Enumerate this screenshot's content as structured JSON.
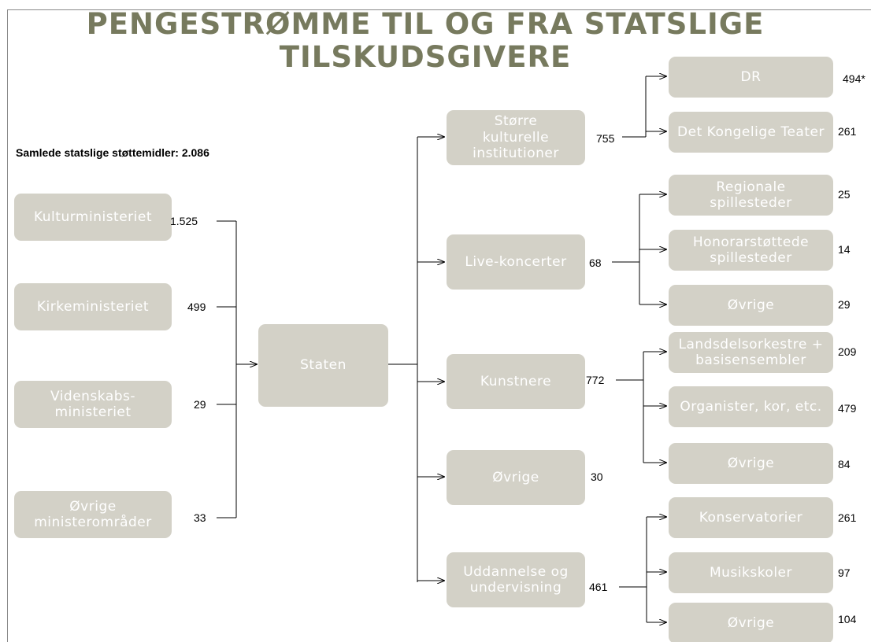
{
  "title": "PENGESTRØMME TIL OG FRA STATSLIGE TILSKUDSGIVERE",
  "subtitle": "Samlede statslige støttemidler: 2.086",
  "sources": [
    {
      "label": "Kulturministeriet",
      "value": "1.525"
    },
    {
      "label": "Kirkeministeriet",
      "value": "499"
    },
    {
      "label": "Videnskabs-ministeriet",
      "value": "29"
    },
    {
      "label": "Øvrige ministerområder",
      "value": "33"
    }
  ],
  "center": {
    "label": "Staten"
  },
  "branches": [
    {
      "label": "Større kulturelle institutioner",
      "value": "755",
      "children": [
        {
          "label": "DR",
          "value": "494*"
        },
        {
          "label": "Det Kongelige Teater",
          "value": "261"
        }
      ]
    },
    {
      "label": "Live-koncerter",
      "value": "68",
      "children": [
        {
          "label": "Regionale spillesteder",
          "value": "25"
        },
        {
          "label": "Honorarstøttede spillesteder",
          "value": "14"
        },
        {
          "label": "Øvrige",
          "value": "29"
        }
      ]
    },
    {
      "label": "Kunstnere",
      "value": "772",
      "children": [
        {
          "label": "Landsdelsorkestre + basisensembler",
          "value": "209"
        },
        {
          "label": "Organister, kor, etc.",
          "value": "479"
        },
        {
          "label": "Øvrige",
          "value": "84"
        }
      ]
    },
    {
      "label": "Øvrige",
      "value": "30",
      "children": []
    },
    {
      "label": "Uddannelse og undervisning",
      "value": "461",
      "children": [
        {
          "label": "Konservatorier",
          "value": "261"
        },
        {
          "label": "Musikskoler",
          "value": "97"
        },
        {
          "label": "Øvrige",
          "value": "104"
        }
      ]
    }
  ]
}
